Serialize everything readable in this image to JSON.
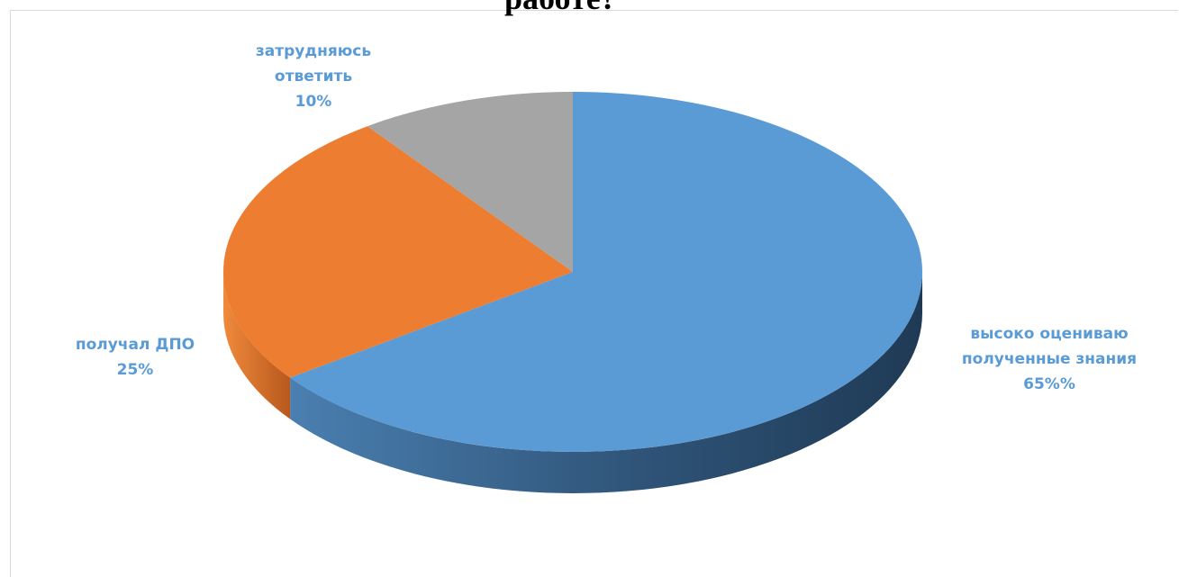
{
  "chart_data": {
    "type": "pie",
    "title": "работе?",
    "slices": [
      {
        "label_lines": [
          "высоко оцениваю",
          "полученные знания"
        ],
        "value_label": "65%%",
        "value": 65,
        "color": "#5b9bd5"
      },
      {
        "label_lines": [
          "получал ДПО"
        ],
        "value_label": "25%",
        "value": 25,
        "color": "#ed7d31"
      },
      {
        "label_lines": [
          "затрудняюсь",
          "ответить"
        ],
        "value_label": "10%",
        "value": 10,
        "color": "#a5a5a5"
      }
    ]
  }
}
